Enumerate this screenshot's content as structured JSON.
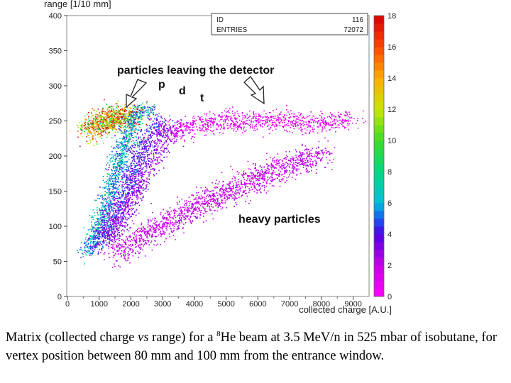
{
  "chart_data": {
    "type": "heatmap",
    "title": "",
    "xlabel": "collected charge [A.U.]",
    "ylabel": "range [1/10 mm]",
    "xlim": [
      0,
      9500
    ],
    "ylim": [
      0,
      400
    ],
    "x_ticks": [
      "0",
      "1000",
      "2000",
      "3000",
      "4000",
      "5000",
      "6000",
      "7000",
      "8000",
      "9000"
    ],
    "y_ticks": [
      "0",
      "50",
      "100",
      "150",
      "200",
      "250",
      "300",
      "350",
      "400"
    ],
    "color_scale": {
      "min": 0,
      "max": 18,
      "tick_labels": [
        "0",
        "2",
        "4",
        "6",
        "8",
        "10",
        "12",
        "14",
        "16",
        "18"
      ]
    },
    "stats_box": {
      "id_label": "ID",
      "id_value": "116",
      "entries_label": "ENTRIES",
      "entries_value": "72072"
    },
    "annotations": {
      "leaving": "particles leaving the detector",
      "p": "p",
      "d": "d",
      "t": "t",
      "heavy": "heavy particles"
    },
    "bands": [
      {
        "name": "blob",
        "points": [
          [
            700,
            235
          ],
          [
            1100,
            250
          ],
          [
            1600,
            258
          ],
          [
            2000,
            255
          ]
        ],
        "width": 14,
        "density": 14
      },
      {
        "name": "p",
        "points": [
          [
            600,
            60
          ],
          [
            900,
            90
          ],
          [
            1200,
            130
          ],
          [
            1500,
            175
          ],
          [
            1800,
            220
          ],
          [
            2100,
            255
          ],
          [
            2400,
            268
          ],
          [
            2600,
            265
          ]
        ],
        "width": 8,
        "density": 6
      },
      {
        "name": "d",
        "points": [
          [
            900,
            70
          ],
          [
            1300,
            100
          ],
          [
            1700,
            140
          ],
          [
            2100,
            185
          ],
          [
            2500,
            228
          ],
          [
            2900,
            255
          ]
        ],
        "width": 9,
        "density": 4
      },
      {
        "name": "t",
        "points": [
          [
            1200,
            80
          ],
          [
            1600,
            105
          ],
          [
            2000,
            140
          ],
          [
            2500,
            185
          ],
          [
            3000,
            225
          ],
          [
            3400,
            245
          ]
        ],
        "width": 10,
        "density": 3
      },
      {
        "name": "leaving",
        "points": [
          [
            3000,
            230
          ],
          [
            4000,
            245
          ],
          [
            5000,
            250
          ],
          [
            6000,
            250
          ],
          [
            7000,
            250
          ],
          [
            8000,
            248
          ],
          [
            9000,
            255
          ]
        ],
        "width": 12,
        "density": 1
      },
      {
        "name": "heavy",
        "points": [
          [
            1500,
            60
          ],
          [
            2500,
            90
          ],
          [
            3500,
            115
          ],
          [
            4500,
            140
          ],
          [
            5500,
            160
          ],
          [
            6500,
            180
          ],
          [
            7500,
            195
          ],
          [
            8000,
            205
          ]
        ],
        "width": 14,
        "density": 2
      }
    ]
  },
  "caption": {
    "part1": "Matrix (collected charge ",
    "vs": "vs",
    "part2": " range) for a ",
    "isotope_mass": "8",
    "part3": "He beam at 3.5 MeV/n in 525 mbar of isobutane, for vertex position between 80 mm and 100 mm from the entrance window."
  }
}
